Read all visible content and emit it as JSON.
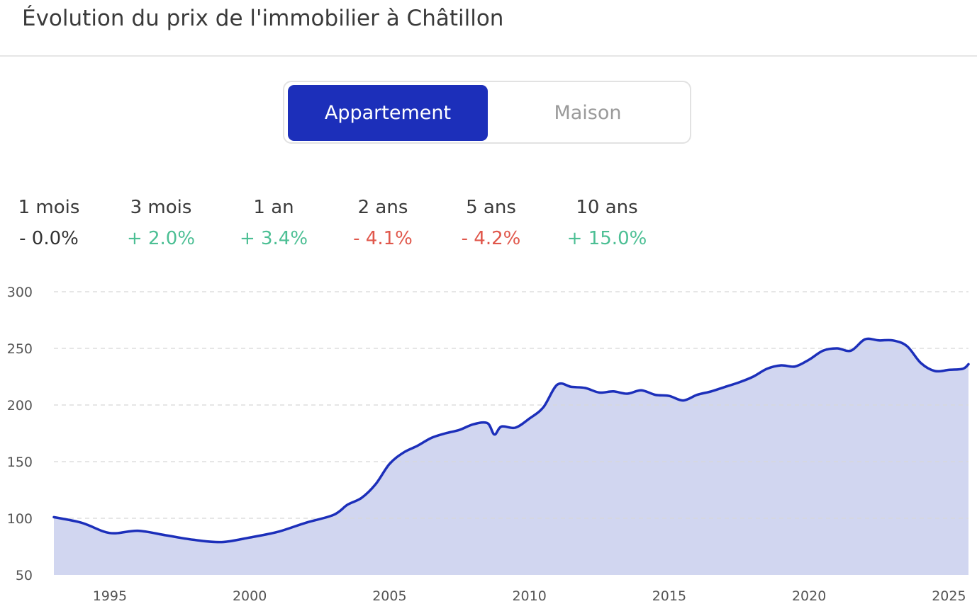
{
  "page": {
    "title": "Évolution du prix de l'immobilier à Châtillon"
  },
  "toggle": {
    "options": [
      "Appartement",
      "Maison"
    ],
    "active": "Appartement"
  },
  "stats": [
    {
      "label": "1 mois",
      "value": "- 0.0%",
      "trend": "neutral"
    },
    {
      "label": "3 mois",
      "value": "+ 2.0%",
      "trend": "up"
    },
    {
      "label": "1 an",
      "value": "+ 3.4%",
      "trend": "up"
    },
    {
      "label": "2 ans",
      "value": "- 4.1%",
      "trend": "down"
    },
    {
      "label": "5 ans",
      "value": "- 4.2%",
      "trend": "down"
    },
    {
      "label": "10 ans",
      "value": "+ 15.0%",
      "trend": "up"
    }
  ],
  "colors": {
    "accent": "#1c2fba",
    "up": "#4cbf94",
    "down": "#e0574b",
    "neutral": "#333333",
    "area": "#d1d6f0",
    "line": "#1c2fba"
  },
  "chart_data": {
    "type": "area",
    "title": "",
    "xlabel": "",
    "ylabel": "",
    "xlim": [
      1993.0,
      2025.7
    ],
    "ylim": [
      50,
      300
    ],
    "yticks": [
      50,
      100,
      150,
      200,
      250,
      300
    ],
    "xticks": [
      1995,
      2000,
      2005,
      2010,
      2015,
      2020,
      2025
    ],
    "grid": true,
    "legend": "none",
    "series": [
      {
        "x": [
          1993.0,
          1994.0,
          1995.0,
          1996.0,
          1997.0,
          1998.0,
          1999.0,
          2000.0,
          2001.0,
          2002.0,
          2003.0,
          2003.5,
          2004.0,
          2004.5,
          2005.0,
          2005.5,
          2006.0,
          2006.5,
          2007.0,
          2007.5,
          2008.0,
          2008.5,
          2008.75,
          2009.0,
          2009.5,
          2010.0,
          2010.5,
          2011.0,
          2011.5,
          2012.0,
          2012.5,
          2013.0,
          2013.5,
          2014.0,
          2014.5,
          2015.0,
          2015.5,
          2016.0,
          2016.5,
          2017.0,
          2017.5,
          2018.0,
          2018.5,
          2019.0,
          2019.5,
          2020.0,
          2020.5,
          2021.0,
          2021.5,
          2022.0,
          2022.5,
          2023.0,
          2023.5,
          2024.0,
          2024.5,
          2025.0,
          2025.5,
          2025.7
        ],
        "y": [
          101,
          96,
          87,
          89,
          85,
          81,
          79,
          83,
          88,
          96,
          103,
          112,
          118,
          130,
          148,
          158,
          164,
          171,
          175,
          178,
          183,
          184,
          174,
          181,
          180,
          188,
          198,
          218,
          216,
          215,
          211,
          212,
          210,
          213,
          209,
          208,
          204,
          209,
          212,
          216,
          220,
          225,
          232,
          235,
          234,
          240,
          248,
          250,
          248,
          258,
          257,
          257,
          252,
          237,
          230,
          231,
          232,
          236
        ]
      }
    ]
  }
}
